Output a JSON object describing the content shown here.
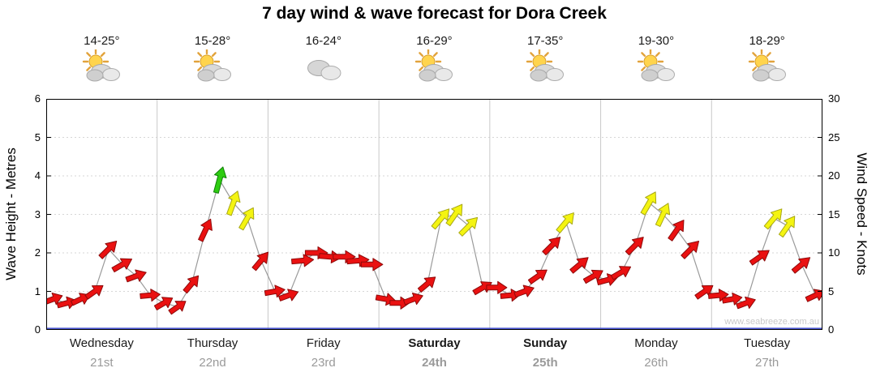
{
  "title": "7 day wind & wave forecast for Dora Creek",
  "watermark": "www.seabreeze.com.au",
  "axes": {
    "left_label": "Wave Height - Metres",
    "right_label": "Wind Speed - Knots",
    "left_ticks_metres": [
      0,
      1,
      2,
      3,
      4,
      5,
      6
    ],
    "right_ticks_knots": [
      0,
      5,
      10,
      15,
      20,
      25,
      30
    ]
  },
  "days": [
    {
      "name": "Wednesday",
      "date": "21st",
      "temps": "14-25°",
      "icon": "sun-cloud",
      "weekend": false
    },
    {
      "name": "Thursday",
      "date": "22nd",
      "temps": "15-28°",
      "icon": "sun-cloud",
      "weekend": false
    },
    {
      "name": "Friday",
      "date": "23rd",
      "temps": "16-24°",
      "icon": "cloud",
      "weekend": false
    },
    {
      "name": "Saturday",
      "date": "24th",
      "temps": "16-29°",
      "icon": "sun-cloud",
      "weekend": true
    },
    {
      "name": "Sunday",
      "date": "25th",
      "temps": "17-35°",
      "icon": "sun-cloud",
      "weekend": true
    },
    {
      "name": "Monday",
      "date": "26th",
      "temps": "19-30°",
      "icon": "sun-cloud",
      "weekend": false
    },
    {
      "name": "Tuesday",
      "date": "27th",
      "temps": "18-29°",
      "icon": "sun-cloud",
      "weekend": false
    }
  ],
  "chart_data": {
    "type": "wind-arrow-timeseries",
    "title": "7 day wind & wave forecast for Dora Creek",
    "categories_days": [
      "Wednesday 21st",
      "Thursday 22nd",
      "Friday 23rd",
      "Saturday 24th",
      "Sunday 25th",
      "Monday 26th",
      "Tuesday 27th"
    ],
    "points_per_day": 8,
    "interval_hours": 3,
    "ylim_left_metres": [
      0,
      6
    ],
    "ylim_right_knots": [
      0,
      30
    ],
    "wind_knots": [
      4,
      3.5,
      4,
      5,
      10.5,
      8.5,
      7,
      4.5,
      3.5,
      3,
      6,
      13,
      19.5,
      16.5,
      14.5,
      9,
      5,
      4.5,
      9,
      10,
      9.5,
      9.5,
      9,
      8.5,
      4,
      3.5,
      4,
      6,
      14.5,
      15,
      13.5,
      5.5,
      5.5,
      4.5,
      5,
      7,
      11,
      14,
      8.5,
      7,
      6.5,
      7.5,
      11,
      16.5,
      15,
      13,
      10.5,
      5,
      4.5,
      4,
      3.5,
      9.5,
      14.5,
      13.5,
      8.5,
      4.5
    ],
    "wind_dir_deg": [
      70,
      75,
      65,
      55,
      45,
      60,
      70,
      85,
      60,
      55,
      40,
      25,
      15,
      20,
      30,
      40,
      80,
      70,
      85,
      90,
      95,
      90,
      85,
      90,
      100,
      90,
      70,
      50,
      40,
      35,
      45,
      60,
      90,
      85,
      70,
      55,
      45,
      40,
      50,
      60,
      75,
      60,
      45,
      30,
      25,
      35,
      45,
      55,
      85,
      80,
      70,
      55,
      40,
      35,
      50,
      65
    ],
    "color_scale": {
      "red_below_kn": 13.5,
      "yellow_from_kn": 13.5,
      "green_from_kn": 19,
      "red": "#ea1111",
      "yellow": "#f4f411",
      "green": "#2ecc11"
    },
    "line_color": "#9a9a9a",
    "grid": {
      "horizontal_dotted_every_metre": true,
      "vertical_day_separators": true
    },
    "baseline_color": "#4853cf"
  }
}
